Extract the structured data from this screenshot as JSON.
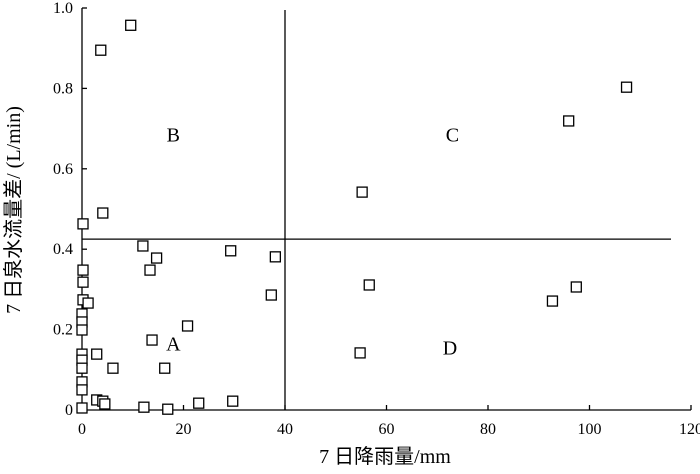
{
  "chart_data": {
    "type": "scatter",
    "x_label": "7 日降雨量/mm",
    "y_label": "7 日泉水流量差/ (L/min)",
    "xlim": [
      0,
      120
    ],
    "xticks": [
      0,
      20,
      40,
      60,
      80,
      100,
      120
    ],
    "ylim": [
      0,
      1
    ],
    "yticks": [
      0,
      0.2,
      0.4,
      0.6,
      0.8,
      {
        "value": 1,
        "label": "1.0"
      }
    ],
    "vline_x": 40,
    "hline_y": 0.425,
    "annotations": [
      {
        "text": "A",
        "x": 18,
        "y": 0.165
      },
      {
        "text": "B",
        "x": 18,
        "y": 0.685
      },
      {
        "text": "C",
        "x": 73,
        "y": 0.685
      },
      {
        "text": "D",
        "x": 72.5,
        "y": 0.155
      }
    ],
    "series": [
      {
        "color": "#000000",
        "x": [
          9.6,
          3.7,
          107.3,
          95.9,
          55.2,
          0.2,
          4.1,
          12.0,
          29.3,
          38.1,
          14.7,
          13.4,
          0.2,
          0.2,
          37.3,
          56.6,
          97.4,
          92.7,
          0.2,
          1.2,
          0,
          0,
          0,
          20.8,
          13.8,
          2.9,
          0,
          0,
          54.8,
          6.1,
          16.3,
          0,
          0,
          0,
          2.9,
          4.1,
          4.5,
          12.2,
          16.9,
          23.0,
          29.7,
          0
        ],
        "values": [
          0.957,
          0.895,
          0.803,
          0.719,
          0.542,
          0.463,
          0.49,
          0.408,
          0.396,
          0.381,
          0.378,
          0.348,
          0.348,
          0.318,
          0.286,
          0.311,
          0.306,
          0.271,
          0.274,
          0.266,
          0.239,
          0.219,
          0.199,
          0.209,
          0.174,
          0.139,
          0.139,
          0.124,
          0.142,
          0.104,
          0.104,
          0.104,
          0.07,
          0.05,
          0.025,
          0.022,
          0.015,
          0.007,
          0.002,
          0.017,
          0.022,
          0.005
        ]
      }
    ]
  }
}
